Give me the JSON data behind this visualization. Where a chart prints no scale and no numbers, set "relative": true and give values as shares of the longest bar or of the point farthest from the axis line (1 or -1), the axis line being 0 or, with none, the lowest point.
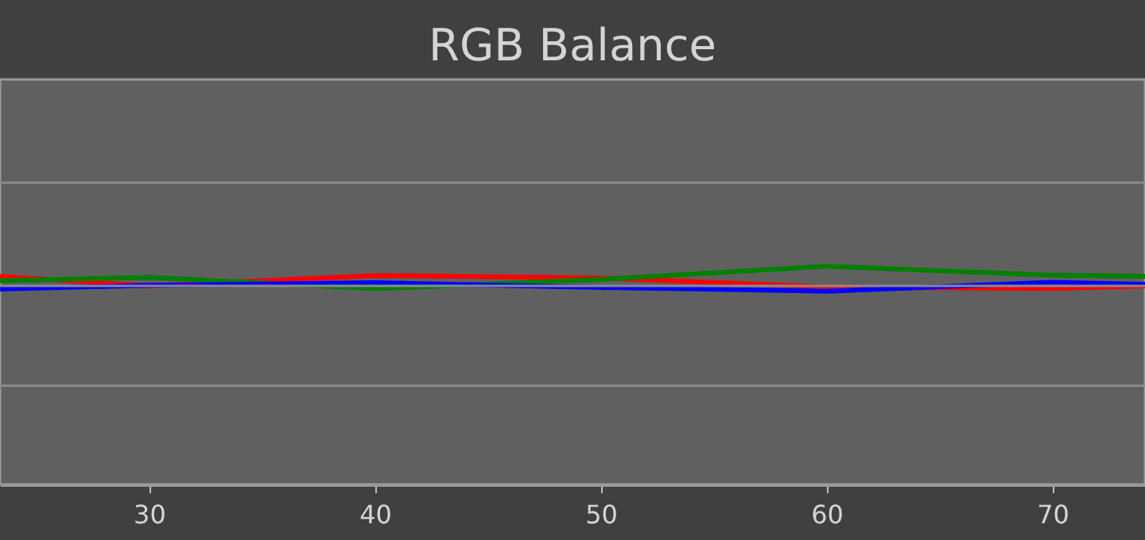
{
  "chart_data": {
    "type": "line",
    "title": "RGB Balance",
    "x": [
      23.4,
      30,
      40,
      50,
      60,
      70,
      74.1
    ],
    "xlim": [
      23.4,
      74.1
    ],
    "xticks": [
      30,
      40,
      50,
      60,
      70
    ],
    "relative": true,
    "ref_lines": [
      {
        "axis": "y",
        "value": 1.384,
        "color": "#8a8a8a"
      },
      {
        "axis": "y",
        "value": 0.91,
        "color": "#8a8a8a"
      },
      {
        "axis": "y",
        "value": 0.452,
        "color": "#8a8a8a"
      }
    ],
    "series": [
      {
        "color": "#ff0000",
        "values": [
          0.954,
          0.91,
          0.958,
          0.947,
          0.905,
          0.898,
          0.91
        ]
      },
      {
        "color": "#008000",
        "values": [
          0.934,
          0.949,
          0.898,
          0.94,
          1,
          0.959,
          0.954
        ]
      },
      {
        "color": "#0000ff",
        "values": [
          0.896,
          0.913,
          0.925,
          0.903,
          0.886,
          0.927,
          0.918
        ]
      }
    ]
  }
}
